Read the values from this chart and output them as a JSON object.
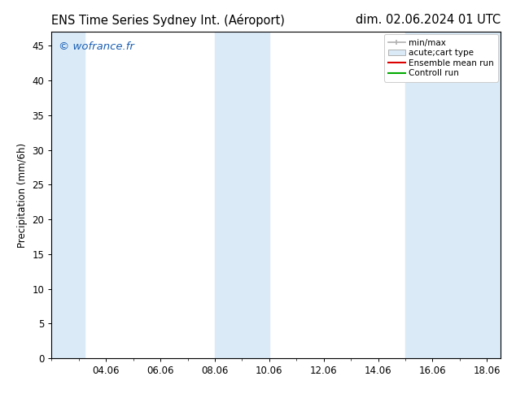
{
  "title_left": "ENS Time Series Sydney Int. (Aéroport)",
  "title_right": "dim. 02.06.2024 01 UTC",
  "ylabel": "Precipitation (mm/6h)",
  "background_color": "#ffffff",
  "plot_bg_color": "#ffffff",
  "ylim": [
    0,
    47
  ],
  "yticks": [
    0,
    5,
    10,
    15,
    20,
    25,
    30,
    35,
    40,
    45
  ],
  "xtick_labels": [
    "04.06",
    "06.06",
    "08.06",
    "10.06",
    "12.06",
    "14.06",
    "16.06",
    "18.06"
  ],
  "xtick_positions": [
    4,
    6,
    8,
    10,
    12,
    14,
    16,
    18
  ],
  "xmin": 2.0,
  "xmax": 18.5,
  "watermark": "© wofrance.fr",
  "watermark_color": "#1a5fb4",
  "shaded_regions": [
    {
      "xmin": 2.0,
      "xmax": 3.2,
      "color": "#daeaf7",
      "alpha": 1.0
    },
    {
      "xmin": 8.0,
      "xmax": 10.0,
      "color": "#daeaf7",
      "alpha": 1.0
    },
    {
      "xmin": 15.0,
      "xmax": 18.5,
      "color": "#daeaf7",
      "alpha": 1.0
    }
  ],
  "legend_entries": [
    {
      "label": "min/max",
      "type": "errorbar",
      "color": "#b0b0b0"
    },
    {
      "label": "acute;cart type",
      "type": "box",
      "facecolor": "#daeaf7",
      "edgecolor": "#b0b0b0"
    },
    {
      "label": "Ensemble mean run",
      "type": "line",
      "color": "#dd0000"
    },
    {
      "label": "Controll run",
      "type": "line",
      "color": "#00aa00"
    }
  ],
  "title_fontsize": 10.5,
  "tick_fontsize": 8.5,
  "ylabel_fontsize": 8.5,
  "legend_fontsize": 7.5,
  "watermark_fontsize": 9.5
}
